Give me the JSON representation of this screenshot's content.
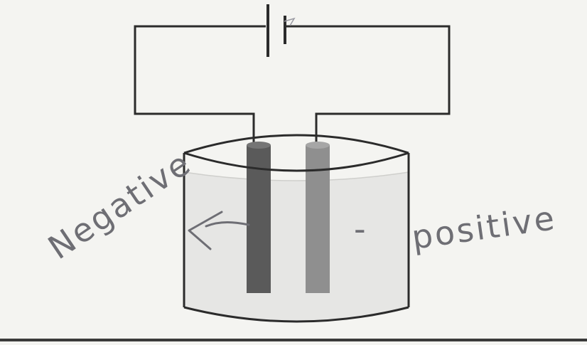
{
  "labels": {
    "left": "Negative",
    "right": "positive"
  },
  "marks": {
    "dash": "-"
  },
  "colors": {
    "background": "#f4f4f1",
    "wire": "#2b2b2b",
    "negative_electrode": "#5a5a5a",
    "positive_electrode": "#8f8f8f",
    "electrolyte": "#e6e6e4",
    "pencil": "#6e6e74"
  }
}
